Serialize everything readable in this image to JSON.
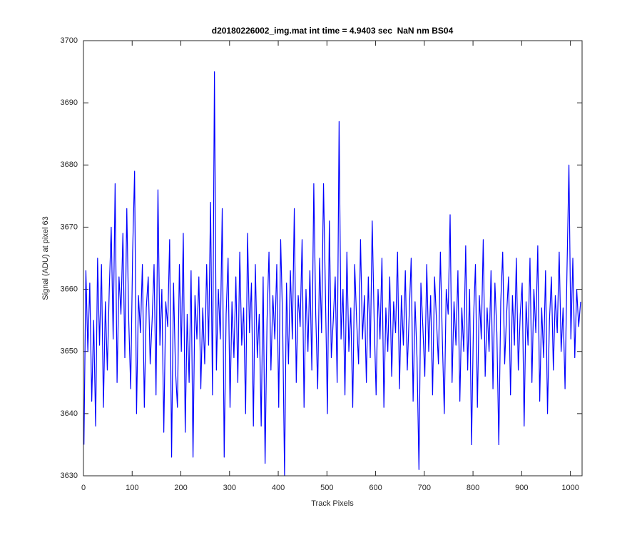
{
  "chart_data": {
    "type": "line",
    "title": "d20180226002_img.mat int time = 4.9403 sec  NaN nm BS04",
    "xlabel": "Track Pixels",
    "ylabel": "Signal (ADU) at pixel 63",
    "xlim": [
      0,
      1024
    ],
    "ylim": [
      3630,
      3700
    ],
    "xticks": [
      0,
      100,
      200,
      300,
      400,
      500,
      600,
      700,
      800,
      900,
      1000
    ],
    "yticks": [
      3630,
      3640,
      3650,
      3660,
      3670,
      3680,
      3690,
      3700
    ],
    "grid": false,
    "x": [
      1,
      5,
      9,
      13,
      17,
      21,
      25,
      29,
      33,
      37,
      41,
      45,
      49,
      53,
      57,
      61,
      65,
      69,
      73,
      77,
      81,
      85,
      89,
      93,
      97,
      101,
      105,
      109,
      113,
      117,
      121,
      125,
      129,
      133,
      137,
      141,
      145,
      149,
      153,
      157,
      161,
      165,
      169,
      173,
      177,
      181,
      185,
      189,
      193,
      197,
      201,
      205,
      209,
      213,
      217,
      221,
      225,
      229,
      233,
      237,
      241,
      245,
      249,
      253,
      257,
      261,
      265,
      269,
      273,
      277,
      281,
      285,
      289,
      293,
      297,
      301,
      305,
      309,
      313,
      317,
      321,
      325,
      329,
      333,
      337,
      341,
      345,
      349,
      353,
      357,
      361,
      365,
      369,
      373,
      377,
      381,
      385,
      389,
      393,
      397,
      401,
      405,
      409,
      413,
      417,
      421,
      425,
      429,
      433,
      437,
      441,
      445,
      449,
      453,
      457,
      461,
      465,
      469,
      473,
      477,
      481,
      485,
      489,
      493,
      497,
      501,
      505,
      509,
      513,
      517,
      521,
      525,
      529,
      533,
      537,
      541,
      545,
      549,
      553,
      557,
      561,
      565,
      569,
      573,
      577,
      581,
      585,
      589,
      593,
      597,
      601,
      605,
      609,
      613,
      617,
      621,
      625,
      629,
      633,
      637,
      641,
      645,
      649,
      653,
      657,
      661,
      665,
      669,
      673,
      677,
      681,
      685,
      689,
      693,
      697,
      701,
      705,
      709,
      713,
      717,
      721,
      725,
      729,
      733,
      737,
      741,
      745,
      749,
      753,
      757,
      761,
      765,
      769,
      773,
      777,
      781,
      785,
      789,
      793,
      797,
      801,
      805,
      809,
      813,
      817,
      821,
      825,
      829,
      833,
      837,
      841,
      845,
      849,
      853,
      857,
      861,
      865,
      869,
      873,
      877,
      881,
      885,
      889,
      893,
      897,
      901,
      905,
      909,
      913,
      917,
      921,
      925,
      929,
      933,
      937,
      941,
      945,
      949,
      953,
      957,
      961,
      965,
      969,
      973,
      977,
      981,
      985,
      989,
      993,
      997,
      1001,
      1005,
      1009,
      1013,
      1017,
      1021
    ],
    "series": [
      {
        "name": "signal",
        "color": "#0000ff",
        "values": [
          3635,
          3663,
          3650,
          3661,
          3642,
          3655,
          3638,
          3665,
          3651,
          3664,
          3641,
          3658,
          3647,
          3660,
          3670,
          3652,
          3677,
          3645,
          3662,
          3656,
          3669,
          3649,
          3673,
          3655,
          3644,
          3666,
          3679,
          3640,
          3659,
          3653,
          3664,
          3641,
          3657,
          3662,
          3648,
          3655,
          3664,
          3643,
          3676,
          3651,
          3660,
          3637,
          3658,
          3654,
          3668,
          3633,
          3661,
          3647,
          3641,
          3664,
          3650,
          3669,
          3637,
          3656,
          3645,
          3663,
          3633,
          3659,
          3652,
          3662,
          3644,
          3657,
          3648,
          3664,
          3651,
          3674,
          3643,
          3695,
          3647,
          3660,
          3652,
          3673,
          3633,
          3656,
          3665,
          3641,
          3658,
          3649,
          3662,
          3645,
          3666,
          3651,
          3657,
          3640,
          3669,
          3653,
          3661,
          3638,
          3664,
          3649,
          3656,
          3638,
          3662,
          3632,
          3655,
          3666,
          3647,
          3659,
          3652,
          3664,
          3641,
          3668,
          3655,
          3630,
          3661,
          3648,
          3663,
          3652,
          3673,
          3645,
          3659,
          3654,
          3668,
          3641,
          3660,
          3650,
          3663,
          3647,
          3677,
          3656,
          3644,
          3665,
          3653,
          3677,
          3659,
          3640,
          3671,
          3649,
          3655,
          3662,
          3645,
          3687,
          3652,
          3660,
          3643,
          3666,
          3650,
          3657,
          3641,
          3664,
          3655,
          3648,
          3668,
          3652,
          3659,
          3645,
          3662,
          3649,
          3671,
          3655,
          3643,
          3660,
          3652,
          3665,
          3641,
          3657,
          3650,
          3662,
          3646,
          3658,
          3653,
          3666,
          3644,
          3659,
          3651,
          3663,
          3647,
          3656,
          3665,
          3642,
          3658,
          3649,
          3631,
          3661,
          3654,
          3646,
          3664,
          3650,
          3659,
          3643,
          3662,
          3655,
          3648,
          3666,
          3652,
          3640,
          3660,
          3656,
          3672,
          3645,
          3658,
          3651,
          3663,
          3642,
          3657,
          3650,
          3667,
          3647,
          3660,
          3635,
          3655,
          3664,
          3641,
          3659,
          3652,
          3668,
          3646,
          3657,
          3650,
          3663,
          3644,
          3661,
          3653,
          3635,
          3658,
          3666,
          3648,
          3656,
          3662,
          3643,
          3659,
          3651,
          3665,
          3647,
          3656,
          3661,
          3638,
          3658,
          3651,
          3665,
          3645,
          3660,
          3653,
          3667,
          3642,
          3657,
          3649,
          3663,
          3640,
          3655,
          3662,
          3647,
          3659,
          3653,
          3666,
          3650,
          3657,
          3644,
          3663,
          3680,
          3652,
          3665,
          3649,
          3660,
          3654,
          3658
        ]
      }
    ]
  }
}
